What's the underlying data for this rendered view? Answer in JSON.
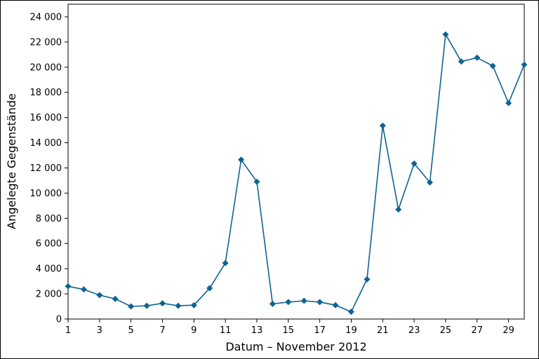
{
  "chart_data": {
    "type": "line",
    "title": "",
    "xlabel": "Datum – November 2012",
    "ylabel": "Angelegte Gegenstände",
    "xlim": [
      1,
      30
    ],
    "ylim": [
      0,
      25000
    ],
    "grid": false,
    "color": "#0e6394",
    "marker": "diamond",
    "x_ticks": [
      {
        "value": 1,
        "label": "1"
      },
      {
        "value": 3,
        "label": "3"
      },
      {
        "value": 5,
        "label": "5"
      },
      {
        "value": 7,
        "label": "7"
      },
      {
        "value": 9,
        "label": "9"
      },
      {
        "value": 11,
        "label": "11"
      },
      {
        "value": 13,
        "label": "13"
      },
      {
        "value": 15,
        "label": "15"
      },
      {
        "value": 17,
        "label": "17"
      },
      {
        "value": 19,
        "label": "19"
      },
      {
        "value": 21,
        "label": "21"
      },
      {
        "value": 23,
        "label": "23"
      },
      {
        "value": 25,
        "label": "25"
      },
      {
        "value": 27,
        "label": "27"
      },
      {
        "value": 29,
        "label": "29"
      }
    ],
    "y_ticks": [
      {
        "value": 0,
        "label": "0"
      },
      {
        "value": 2000,
        "label": "2 000"
      },
      {
        "value": 4000,
        "label": "4 000"
      },
      {
        "value": 6000,
        "label": "6 000"
      },
      {
        "value": 8000,
        "label": "8 000"
      },
      {
        "value": 10000,
        "label": "10 000"
      },
      {
        "value": 12000,
        "label": "12 000"
      },
      {
        "value": 14000,
        "label": "14 000"
      },
      {
        "value": 16000,
        "label": "16 000"
      },
      {
        "value": 18000,
        "label": "18 000"
      },
      {
        "value": 20000,
        "label": "20 000"
      },
      {
        "value": 22000,
        "label": "22 000"
      },
      {
        "value": 24000,
        "label": "24 000"
      }
    ],
    "x": [
      1,
      2,
      3,
      4,
      5,
      6,
      7,
      8,
      9,
      10,
      11,
      12,
      13,
      14,
      15,
      16,
      17,
      18,
      19,
      20,
      21,
      22,
      23,
      24,
      25,
      26,
      27,
      28,
      29,
      30
    ],
    "values": [
      2600,
      2350,
      1900,
      1600,
      1000,
      1050,
      1250,
      1050,
      1100,
      2450,
      4450,
      12650,
      10900,
      1200,
      1350,
      1450,
      1350,
      1100,
      580,
      3150,
      15350,
      8700,
      12350,
      10850,
      22600,
      20450,
      20750,
      20100,
      17150,
      20200
    ]
  }
}
